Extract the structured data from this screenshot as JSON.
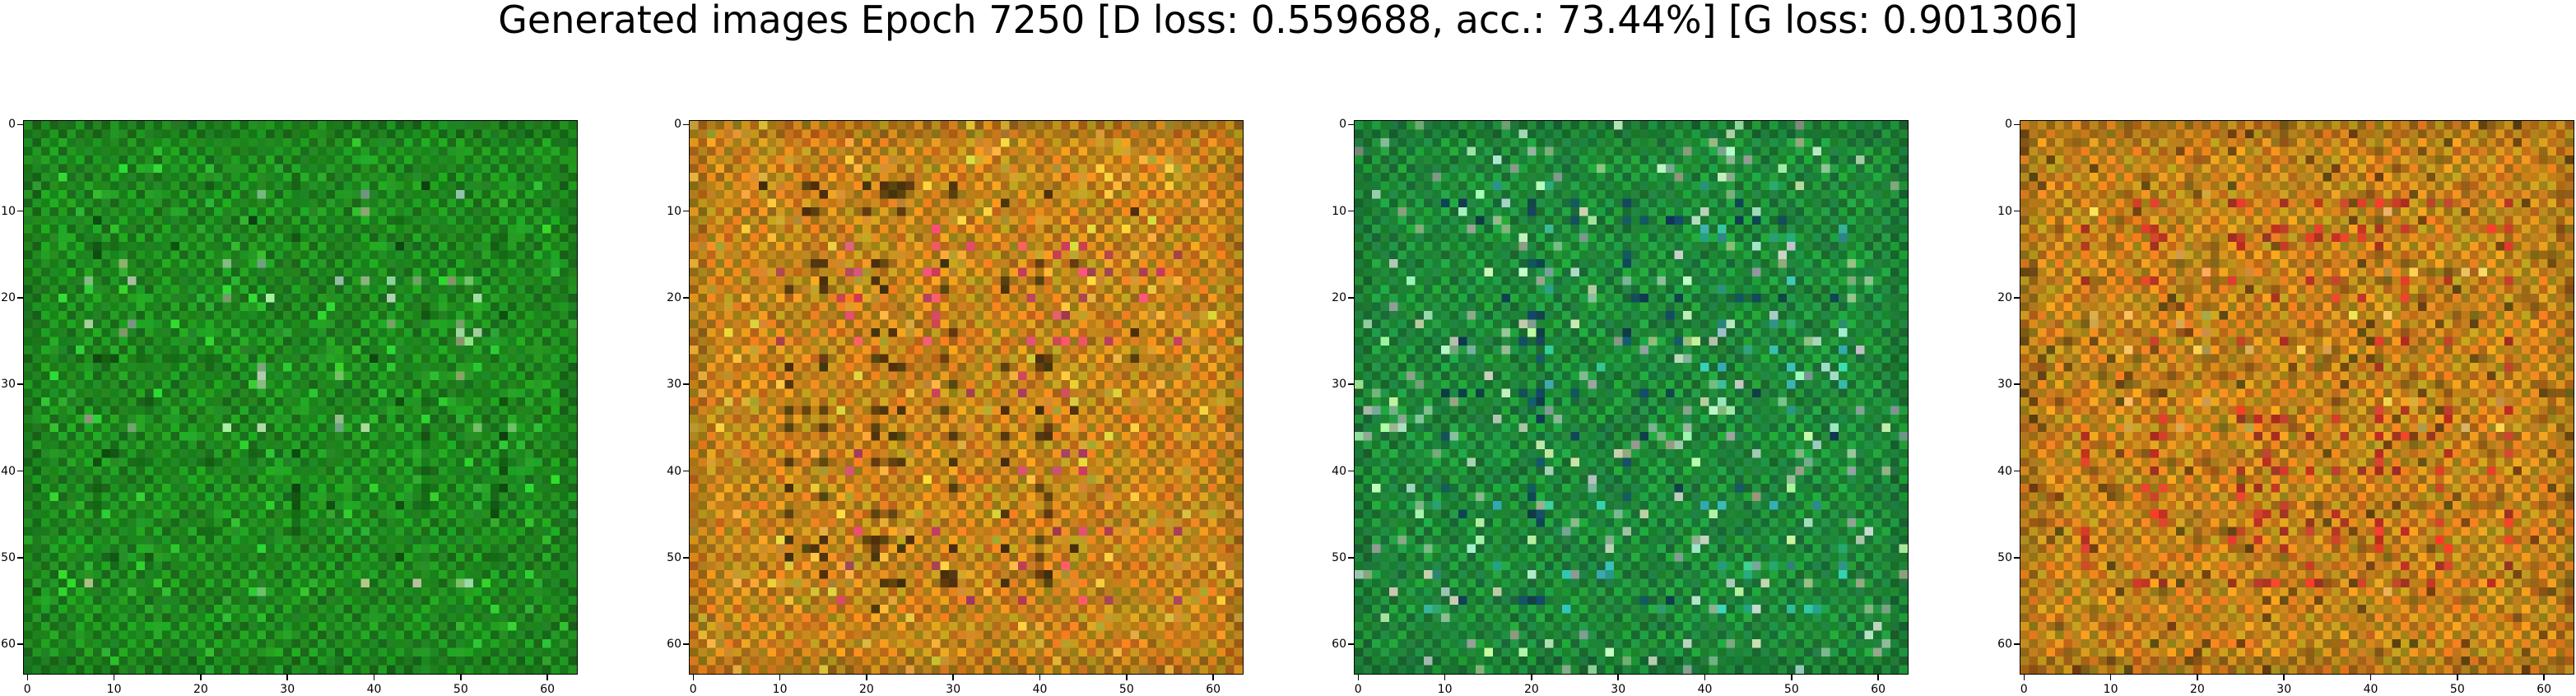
{
  "figure": {
    "title": "Generated images Epoch 7250 [D loss: 0.559688, acc.: 73.44%] [G loss: 0.901306]"
  },
  "axes": {
    "x_ticks": [
      "0",
      "10",
      "20",
      "30",
      "40",
      "50",
      "60"
    ],
    "y_ticks": [
      "0",
      "10",
      "20",
      "30",
      "40",
      "50",
      "60"
    ],
    "ticks_values": [
      0,
      10,
      20,
      30,
      40,
      50,
      60
    ],
    "range": [
      -0.5,
      63.5
    ]
  },
  "images": [
    {
      "name": "generated-image-1",
      "palette": "green",
      "base": "#1f8a1f",
      "accent": [
        "#0b3d0b",
        "#cfe8c4",
        "#33c433"
      ]
    },
    {
      "name": "generated-image-2",
      "palette": "orange",
      "base": "#c8861c",
      "accent": [
        "#1a1206",
        "#e0308a",
        "#f0c844"
      ]
    },
    {
      "name": "generated-image-3",
      "palette": "teal-green",
      "base": "#1f8a3a",
      "accent": [
        "#0b2a6b",
        "#3ec7c7",
        "#e8f0e0"
      ]
    },
    {
      "name": "generated-image-4",
      "palette": "orange-red",
      "base": "#c8861c",
      "accent": [
        "#c8142c",
        "#f0d070",
        "#5a3a10"
      ]
    }
  ]
}
